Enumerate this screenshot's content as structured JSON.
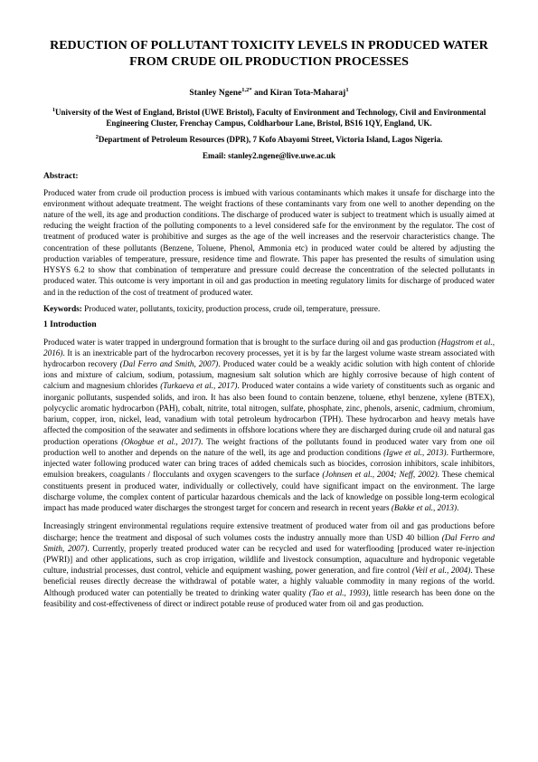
{
  "title": "REDUCTION OF POLLUTANT TOXICITY LEVELS IN PRODUCED WATER FROM CRUDE OIL PRODUCTION PROCESSES",
  "authors_html": "Stanley Ngene<sup>1,2*</sup> and Kiran Tota-Maharaj<sup>1</sup>",
  "affil1_html": "<sup>1</sup>University of the West of England, Bristol (UWE Bristol), Faculty of Environment and Technology, Civil and Environmental Engineering Cluster, Frenchay Campus, Coldharbour Lane, Bristol, BS16 1QY, England, UK.",
  "affil2_html": "<sup>2</sup>Department of Petroleum Resources (DPR), 7 Kofo Abayomi Street, Victoria Island, Lagos Nigeria.",
  "email": "Email: stanley2.ngene@live.uwe.ac.uk",
  "abstract_heading": "Abstract:",
  "abstract_body": "Produced water from crude oil production process is imbued with various contaminants which makes it unsafe for discharge into the environment without adequate treatment. The weight fractions of these contaminants vary from one well to another depending on the nature of the well, its age and production conditions. The discharge of produced water is subject to treatment which is usually aimed at reducing the weight fraction of the polluting components to a level considered safe for the environment by the regulator. The cost of treatment of produced water is prohibitive and surges as the age of the well increases and the reservoir characteristics change. The concentration of these pollutants (Benzene, Toluene, Phenol, Ammonia etc) in produced water could be altered by adjusting the production variables of temperature, pressure, residence time and flowrate. This paper has presented the results of simulation using HYSYS 6.2 to show that combination of temperature and pressure could decrease the concentration of the selected pollutants in produced water. This outcome is very important in oil and gas production in meeting regulatory limits for discharge of produced water and in the reduction of the cost of treatment of produced water.",
  "keywords_label": "Keywords:",
  "keywords_text": " Produced water, pollutants, toxicity, production process, crude oil, temperature, pressure.",
  "section1_heading": "1    Introduction",
  "para1_html": "Produced water is water trapped in underground formation that is brought to the surface during oil and gas production <span class=\"italic\">(Hagstrom et al., 2016)</span>. It is an inextricable part of the hydrocarbon recovery processes, yet it is by far the largest volume waste stream associated with hydrocarbon recovery <span class=\"italic\">(Dal Ferro and Smith, 2007)</span>. Produced water could be a weakly acidic solution with high content of chloride ions and mixture of calcium, sodium, potassium, magnesium salt solution which are highly corrosive because of high content of calcium and magnesium chlorides <span class=\"italic\">(Turkaeva et al., 2017)</span>. Produced water contains a wide variety of constituents such as organic and inorganic pollutants, suspended solids, and iron. It has also been found to contain benzene, toluene, ethyl benzene, xylene (BTEX), polycyclic aromatic hydrocarbon (PAH), cobalt, nitrite, total nitrogen, sulfate, phosphate, zinc, phenols, arsenic, cadmium, chromium, barium, copper, iron, nickel, lead, vanadium with total petroleum hydrocarbon (TPH). These hydrocarbon and heavy metals have affected the composition of the seawater and sediments in offshore locations where they are discharged during crude oil and natural gas production operations <span class=\"italic\">(Okogbue et al., 2017)</span>. The weight fractions of the pollutants found in produced water vary from one oil production well to another and depends on the nature of the well, its age and production conditions <span class=\"italic\">(Igwe et al., 2013)</span>. Furthermore, injected water following produced water can bring traces of added chemicals such as biocides, corrosion inhibitors, scale inhibitors, emulsion breakers, coagulants / flocculants and oxygen scavengers to the surface <span class=\"italic\">(Johnsen et al., 2004; Neff, 2002)</span>. These chemical constituents present in produced water, individually or collectively, could have significant impact on the environment. The large discharge volume, the complex content of particular hazardous chemicals and the lack of knowledge on possible long-term ecological impact has made produced water discharges the strongest target for concern and research in recent years <span class=\"italic\">(Bakke et al., 2013)</span>.",
  "para2_html": "Increasingly stringent environmental regulations require extensive treatment of produced water from oil and gas productions before discharge; hence the treatment and disposal of such volumes costs the industry annually more than USD 40 billion <span class=\"italic\">(Dal Ferro and Smith, 2007)</span>. Currently, properly treated produced water can be recycled and used for waterflooding [produced water re-injection (PWRI)] and other applications, such as crop irrigation, wildlife and livestock consumption, aquaculture and hydroponic vegetable culture, industrial processes, dust control, vehicle and equipment washing, power generation, and fire control <span class=\"italic\">(Veil et al., 2004)</span>. These beneficial reuses directly decrease the withdrawal of potable water, a highly valuable commodity in many regions of the world. Although produced water can potentially be treated to drinking water quality <span class=\"italic\">(Tao et al., 1993)</span>, little research has been done on the feasibility and cost-effectiveness of direct or indirect potable reuse of produced water from oil and gas production."
}
